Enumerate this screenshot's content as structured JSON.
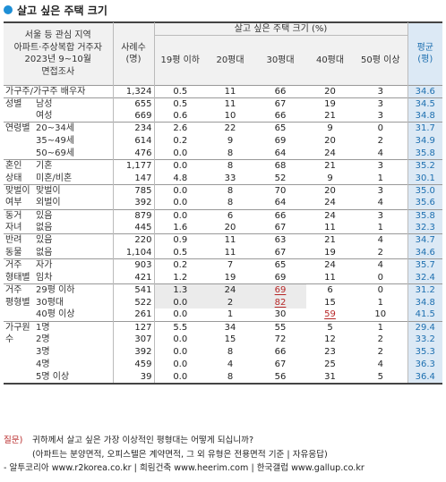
{
  "title": "살고 싶은 주택 크기",
  "header": {
    "survey_lines": [
      "서울 등 관심 지역",
      "아파트·주상복합 거주자",
      "2023년 9~10월",
      "면접조사"
    ],
    "sample_line1": "사례수",
    "sample_line2": "(명)",
    "group_title": "살고 싶은 주택 크기 (%)",
    "columns": [
      "19평 이하",
      "20평대",
      "30평대",
      "40평대",
      "50평 이상"
    ],
    "mean_line1": "평균",
    "mean_line2": "(평)"
  },
  "rows": [
    {
      "g1": "가구주/가구주 배우자",
      "g2": "",
      "n": "1,324",
      "v": [
        "0.5",
        "11",
        "66",
        "20",
        "3"
      ],
      "mean": "34.6",
      "span": true
    },
    {
      "g1": "성별",
      "g2": "남성",
      "n": "655",
      "v": [
        "0.5",
        "11",
        "67",
        "19",
        "3"
      ],
      "mean": "34.5"
    },
    {
      "g1": "",
      "g2": "여성",
      "n": "669",
      "v": [
        "0.6",
        "10",
        "66",
        "21",
        "3"
      ],
      "mean": "34.8"
    },
    {
      "g1": "연령별",
      "g2": "20~34세",
      "n": "234",
      "v": [
        "2.6",
        "22",
        "65",
        "9",
        "0"
      ],
      "mean": "31.7"
    },
    {
      "g1": "",
      "g2": "35~49세",
      "n": "614",
      "v": [
        "0.2",
        "9",
        "69",
        "20",
        "2"
      ],
      "mean": "34.9"
    },
    {
      "g1": "",
      "g2": "50~69세",
      "n": "476",
      "v": [
        "0.0",
        "8",
        "64",
        "24",
        "4"
      ],
      "mean": "35.8"
    },
    {
      "g1": "혼인",
      "g2": "기혼",
      "n": "1,177",
      "v": [
        "0.0",
        "8",
        "68",
        "21",
        "3"
      ],
      "mean": "35.2"
    },
    {
      "g1": "상태",
      "g2": "미혼/비혼",
      "n": "147",
      "v": [
        "4.8",
        "33",
        "52",
        "9",
        "1"
      ],
      "mean": "30.1"
    },
    {
      "g1": "맞벌이",
      "g2": "맞벌이",
      "n": "785",
      "v": [
        "0.0",
        "8",
        "70",
        "20",
        "3"
      ],
      "mean": "35.0"
    },
    {
      "g1": "여부",
      "g2": "외벌이",
      "n": "392",
      "v": [
        "0.0",
        "8",
        "64",
        "24",
        "4"
      ],
      "mean": "35.6"
    },
    {
      "g1": "동거",
      "g2": "있음",
      "n": "879",
      "v": [
        "0.0",
        "6",
        "66",
        "24",
        "3"
      ],
      "mean": "35.8"
    },
    {
      "g1": "자녀",
      "g2": "없음",
      "n": "445",
      "v": [
        "1.6",
        "20",
        "67",
        "11",
        "1"
      ],
      "mean": "32.3"
    },
    {
      "g1": "반려",
      "g2": "있음",
      "n": "220",
      "v": [
        "0.9",
        "11",
        "63",
        "21",
        "4"
      ],
      "mean": "34.7"
    },
    {
      "g1": "동물",
      "g2": "없음",
      "n": "1,104",
      "v": [
        "0.5",
        "11",
        "67",
        "19",
        "2"
      ],
      "mean": "34.6"
    },
    {
      "g1": "거주",
      "g2": "자가",
      "n": "903",
      "v": [
        "0.2",
        "7",
        "65",
        "24",
        "4"
      ],
      "mean": "35.7"
    },
    {
      "g1": "형태별",
      "g2": "임차",
      "n": "421",
      "v": [
        "1.2",
        "19",
        "69",
        "11",
        "0"
      ],
      "mean": "32.4"
    },
    {
      "g1": "거주",
      "g2": "29평 이하",
      "n": "541",
      "v": [
        "1.3",
        "24",
        "69",
        "6",
        "0"
      ],
      "mean": "31.2"
    },
    {
      "g1": "평형별",
      "g2": "30평대",
      "n": "522",
      "v": [
        "0.0",
        "2",
        "82",
        "15",
        "1"
      ],
      "mean": "34.8"
    },
    {
      "g1": "",
      "g2": "40평 이상",
      "n": "261",
      "v": [
        "0.0",
        "1",
        "30",
        "59",
        "10"
      ],
      "mean": "41.5"
    },
    {
      "g1": "가구원",
      "g2": "1명",
      "n": "127",
      "v": [
        "5.5",
        "34",
        "55",
        "5",
        "1"
      ],
      "mean": "29.4"
    },
    {
      "g1": "수",
      "g2": "2명",
      "n": "307",
      "v": [
        "0.0",
        "15",
        "72",
        "12",
        "2"
      ],
      "mean": "33.2"
    },
    {
      "g1": "",
      "g2": "3명",
      "n": "392",
      "v": [
        "0.0",
        "8",
        "66",
        "23",
        "2"
      ],
      "mean": "35.3"
    },
    {
      "g1": "",
      "g2": "4명",
      "n": "459",
      "v": [
        "0.0",
        "4",
        "67",
        "25",
        "4"
      ],
      "mean": "36.3"
    },
    {
      "g1": "",
      "g2": "5명 이상",
      "n": "39",
      "v": [
        "0.0",
        "8",
        "56",
        "31",
        "5"
      ],
      "mean": "36.4"
    }
  ],
  "footer": {
    "q_label": "질문)",
    "q_text": "귀하께서 살고 싶은 가장 이상적인 평형대는 어떻게 되십니까?",
    "note": "(아파트는 분양면적, 오피스텔은 계약면적, 그 외 유형은 전용면적 기준 | 자유응답)",
    "credits": "- 알투코리아 www.r2korea.co.kr | 희림건축 www.heerim.com | 한국갤럽 www.gallup.co.kr"
  },
  "colors": {
    "accent": "#1e8fd6",
    "mean_bg": "#dce9f5",
    "mean_text": "#1d6fb0",
    "highlight_red": "#b72828",
    "row_highlight": "#ebebeb"
  }
}
